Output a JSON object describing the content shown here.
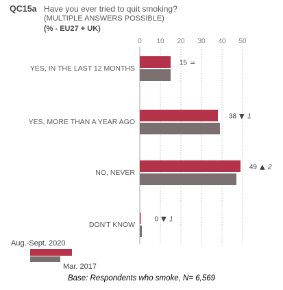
{
  "header": {
    "code": "QC15a",
    "title": "Have you ever tried to quit smoking?",
    "subtitle": "(MULTIPLE ANSWERS POSSIBLE)",
    "scope": "(% - EU27 + UK)"
  },
  "footer": {
    "base": "Base: Respondents who smoke, N= 6,569"
  },
  "colors": {
    "current": "#b5324b",
    "previous": "#7b6f6f",
    "axis": "#bfbfbf",
    "text": "#595959"
  },
  "chart_data": {
    "type": "bar",
    "orientation": "horizontal",
    "categories": [
      "YES, IN THE LAST 12 MONTHS",
      "YES, MORE THAN A YEAR AGO",
      "NO, NEVER",
      "DON'T KNOW"
    ],
    "series": [
      {
        "name": "Aug.-Sept. 2020",
        "values": [
          15,
          38,
          49,
          0
        ]
      },
      {
        "name": "Mar. 2017",
        "values": [
          15,
          39,
          47,
          1
        ]
      }
    ],
    "value_labels": [
      "15",
      "38",
      "49",
      "0"
    ],
    "change_symbols": [
      "=",
      "▼",
      "▲",
      "▼"
    ],
    "change_values": [
      "",
      "1",
      "2",
      "1"
    ],
    "xticks": [
      0,
      10,
      20,
      30,
      40,
      50
    ],
    "xlim": [
      0,
      50
    ],
    "grid": true,
    "legend_position": "bottom-left"
  }
}
